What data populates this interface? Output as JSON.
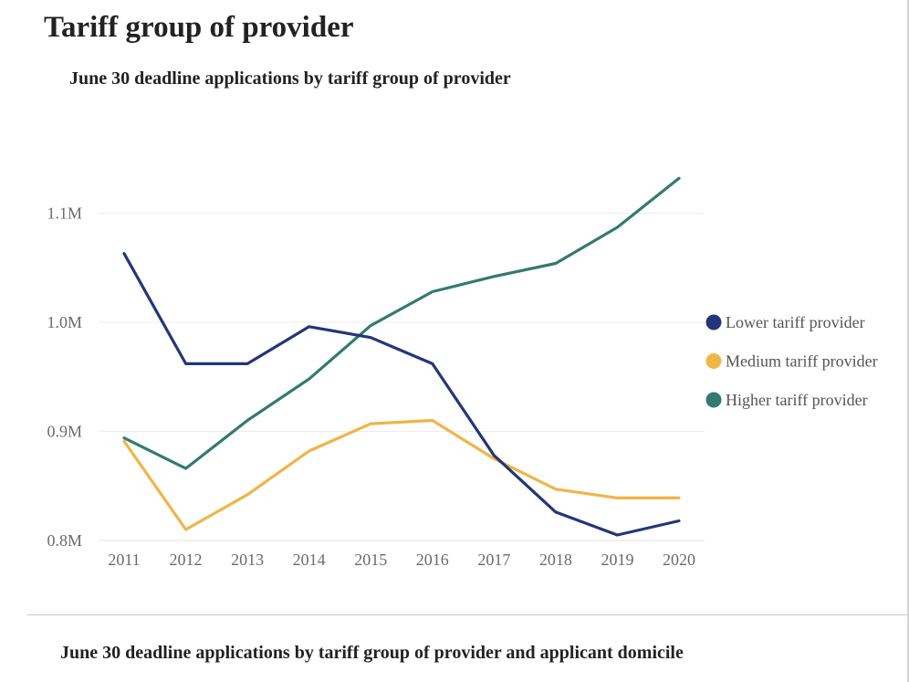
{
  "page": {
    "title": "Tariff group of provider",
    "next_chart_title": "June 30 deadline applications by tariff group of provider and applicant domicile"
  },
  "chart_data": {
    "type": "line",
    "title": "June 30 deadline applications by tariff group of provider",
    "xlabel": "",
    "ylabel": "",
    "categories": [
      "2011",
      "2012",
      "2013",
      "2014",
      "2015",
      "2016",
      "2017",
      "2018",
      "2019",
      "2020"
    ],
    "y_ticks": [
      {
        "value": 800000,
        "label": "0.8M"
      },
      {
        "value": 900000,
        "label": "0.9M"
      },
      {
        "value": 1000000,
        "label": "1.0M"
      },
      {
        "value": 1100000,
        "label": "1.1M"
      }
    ],
    "ylim": [
      800000,
      1150000
    ],
    "grid": true,
    "legend_position": "right",
    "series": [
      {
        "name": "Lower tariff provider",
        "color": "#23367a",
        "values": [
          1063000,
          962000,
          962000,
          996000,
          986000,
          962000,
          878000,
          826000,
          805000,
          818000
        ]
      },
      {
        "name": "Medium tariff provider",
        "color": "#f0b547",
        "values": [
          891000,
          810000,
          842000,
          882000,
          907000,
          910000,
          875000,
          847000,
          839000,
          839000
        ]
      },
      {
        "name": "Higher tariff provider",
        "color": "#347a70",
        "values": [
          894000,
          866000,
          910000,
          948000,
          997000,
          1028000,
          1042000,
          1054000,
          1087000,
          1132000
        ]
      }
    ]
  }
}
